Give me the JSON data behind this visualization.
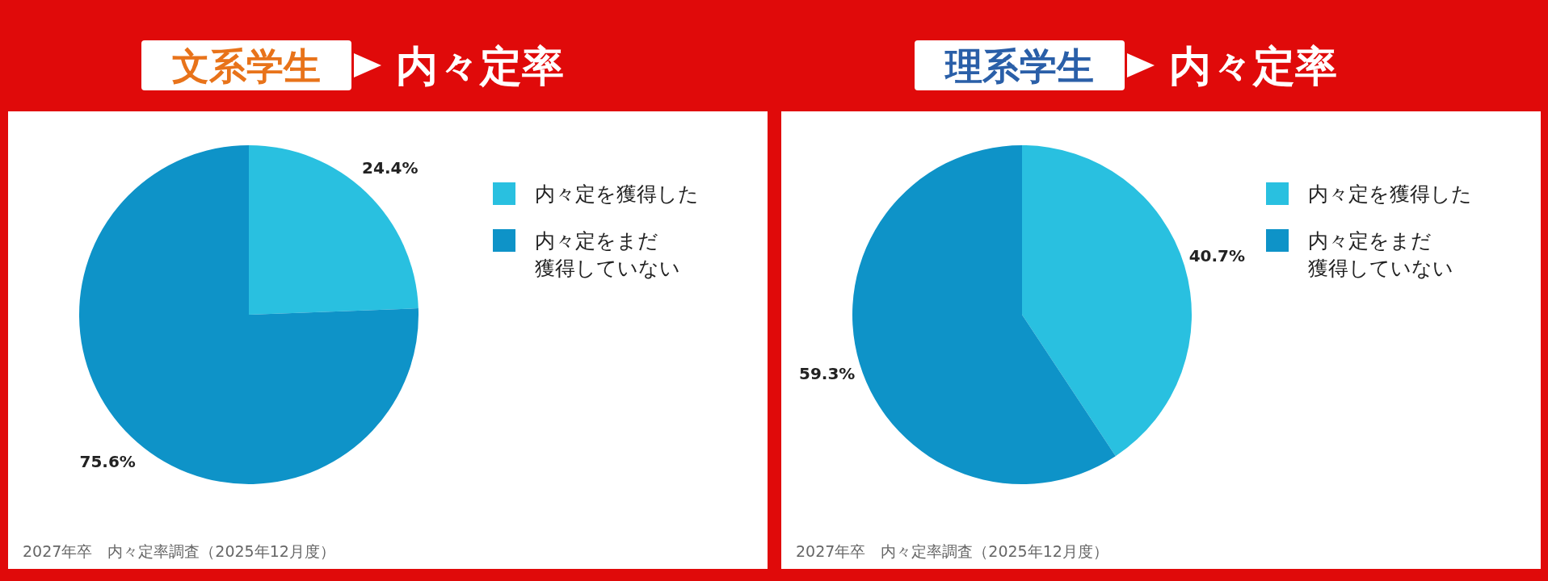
{
  "chart_data": [
    {
      "type": "pie",
      "title": "文系学生",
      "subtitle": "内々定率",
      "categories": [
        "内々定を獲得した",
        "内々定をまだ獲得していない"
      ],
      "values": [
        24.4,
        75.6
      ],
      "colors": [
        "#29c0e0",
        "#0e93c8"
      ],
      "data_labels": true,
      "value_labels": [
        "24.4%",
        "75.6%"
      ],
      "legend": "right",
      "annotations": [
        "2027年卒　内々定率調査（2025年12月度）"
      ]
    },
    {
      "type": "pie",
      "title": "理系学生",
      "subtitle": "内々定率",
      "categories": [
        "内々定を獲得した",
        "内々定をまだ獲得していない"
      ],
      "values": [
        40.7,
        59.3
      ],
      "colors": [
        "#29c0e0",
        "#0e93c8"
      ],
      "data_labels": true,
      "value_labels": [
        "40.7%",
        "59.3%"
      ],
      "legend": "right",
      "annotations": [
        "2027年卒　内々定率調査（2025年12月度）"
      ]
    }
  ]
}
